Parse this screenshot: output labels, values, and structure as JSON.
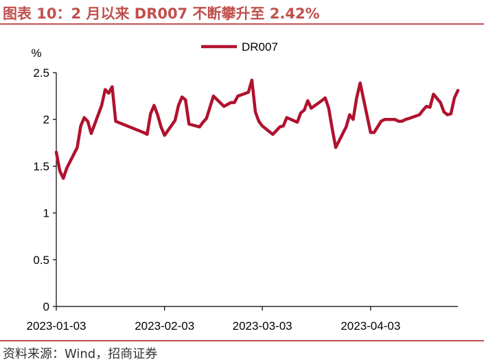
{
  "header": {
    "title": "图表 10：2 月以来 DR007 不断攀升至 2.42%"
  },
  "footer": {
    "source": "资料来源：Wind，招商证券"
  },
  "colors": {
    "accent": "#c0504d",
    "series": "#b0122e"
  },
  "chart_data": {
    "type": "line",
    "ylabel": "%",
    "ylim": [
      0,
      2.5
    ],
    "yticks": [
      "0",
      "0.5",
      "1",
      "1.5",
      "2",
      "2.5"
    ],
    "xlim": [
      "2023-01-03",
      "2023-04-28"
    ],
    "xticks": [
      "2023-01-03",
      "2023-02-03",
      "2023-03-03",
      "2023-04-03"
    ],
    "legend": "top-center",
    "grid": false,
    "series": [
      {
        "name": "DR007",
        "x": [
          "2023-01-03",
          "2023-01-04",
          "2023-01-05",
          "2023-01-06",
          "2023-01-09",
          "2023-01-10",
          "2023-01-11",
          "2023-01-12",
          "2023-01-13",
          "2023-01-16",
          "2023-01-17",
          "2023-01-18",
          "2023-01-19",
          "2023-01-20",
          "2023-01-28",
          "2023-01-29",
          "2023-01-30",
          "2023-01-31",
          "2023-02-01",
          "2023-02-02",
          "2023-02-03",
          "2023-02-06",
          "2023-02-07",
          "2023-02-08",
          "2023-02-09",
          "2023-02-10",
          "2023-02-13",
          "2023-02-14",
          "2023-02-15",
          "2023-02-16",
          "2023-02-17",
          "2023-02-20",
          "2023-02-21",
          "2023-02-22",
          "2023-02-23",
          "2023-02-24",
          "2023-02-27",
          "2023-02-28",
          "2023-03-01",
          "2023-03-02",
          "2023-03-03",
          "2023-03-06",
          "2023-03-07",
          "2023-03-08",
          "2023-03-09",
          "2023-03-10",
          "2023-03-13",
          "2023-03-14",
          "2023-03-15",
          "2023-03-16",
          "2023-03-17",
          "2023-03-20",
          "2023-03-21",
          "2023-03-22",
          "2023-03-23",
          "2023-03-24",
          "2023-03-27",
          "2023-03-28",
          "2023-03-29",
          "2023-03-30",
          "2023-03-31",
          "2023-04-03",
          "2023-04-04",
          "2023-04-06",
          "2023-04-07",
          "2023-04-10",
          "2023-04-11",
          "2023-04-12",
          "2023-04-13",
          "2023-04-14",
          "2023-04-17",
          "2023-04-18",
          "2023-04-19",
          "2023-04-20",
          "2023-04-21",
          "2023-04-23",
          "2023-04-24",
          "2023-04-25",
          "2023-04-26",
          "2023-04-27",
          "2023-04-28"
        ],
        "y": [
          1.65,
          1.45,
          1.37,
          1.48,
          1.7,
          1.93,
          2.02,
          1.98,
          1.85,
          2.15,
          2.32,
          2.28,
          2.35,
          1.98,
          1.86,
          1.84,
          2.06,
          2.15,
          2.05,
          1.92,
          1.83,
          1.99,
          2.15,
          2.24,
          2.21,
          1.95,
          1.92,
          1.97,
          2.01,
          2.13,
          2.25,
          2.14,
          2.16,
          2.18,
          2.18,
          2.25,
          2.29,
          2.42,
          2.08,
          1.98,
          1.93,
          1.84,
          1.88,
          1.92,
          1.93,
          2.02,
          1.97,
          2.07,
          2.1,
          2.2,
          2.12,
          2.2,
          2.23,
          2.12,
          1.9,
          1.7,
          1.92,
          2.05,
          2.0,
          2.23,
          2.39,
          1.86,
          1.86,
          1.98,
          2.0,
          2.0,
          1.98,
          1.98,
          2.0,
          2.01,
          2.05,
          2.1,
          2.14,
          2.13,
          2.27,
          2.18,
          2.08,
          2.05,
          2.06,
          2.23,
          2.31
        ]
      }
    ]
  }
}
